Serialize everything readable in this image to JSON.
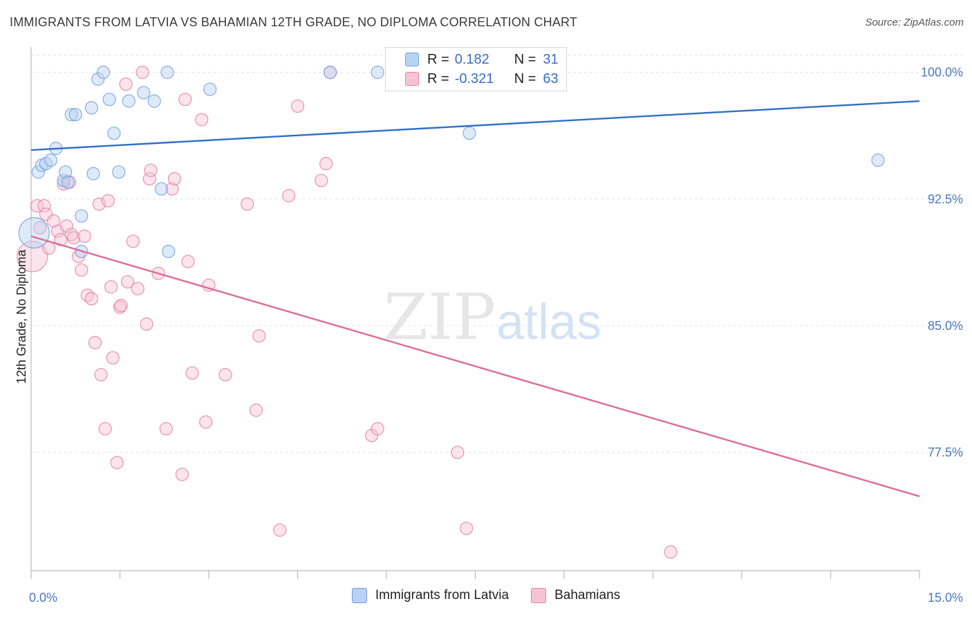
{
  "header": {
    "title": "IMMIGRANTS FROM LATVIA VS BAHAMIAN 12TH GRADE, NO DIPLOMA CORRELATION CHART",
    "source": "Source: ZipAtlas.com"
  },
  "watermark": {
    "zip": "ZIP",
    "atlas": "atlas"
  },
  "legend": {
    "rows": [
      {
        "r_label": "R =",
        "r_value": "0.182",
        "n_label": "N =",
        "n_value": "31"
      },
      {
        "r_label": "R =",
        "r_value": "-0.321",
        "n_label": "N =",
        "n_value": "63"
      }
    ]
  },
  "chart_data": {
    "type": "scatter",
    "title": "IMMIGRANTS FROM LATVIA VS BAHAMIAN 12TH GRADE, NO DIPLOMA CORRELATION CHART",
    "xlabel": "",
    "ylabel": "12th Grade, No Diploma",
    "xlim": [
      0,
      15
    ],
    "ylim": [
      70.5,
      101.5
    ],
    "x_tick_labels": [
      "0.0%",
      "15.0%"
    ],
    "y_ticks": [
      {
        "value": 100,
        "label": "100.0%"
      },
      {
        "value": 92.5,
        "label": "92.5%"
      },
      {
        "value": 85,
        "label": "85.0%"
      },
      {
        "value": 77.5,
        "label": "77.5%"
      }
    ],
    "grid": true,
    "legend_position": "top-center",
    "colors": {
      "latvia": "#6fa0e0",
      "latvia_fill": "#b9d1f2",
      "bahamas": "#e87fa2",
      "bahamas_fill": "#f6c3d4",
      "latvia_line": "#2e6fc7",
      "bahamas_line": "#df6a96",
      "tick_text": "#4a78c2"
    },
    "series": [
      {
        "name": "Immigrants from Latvia",
        "trend": {
          "x": [
            0,
            15
          ],
          "y": [
            95.4,
            98.3
          ]
        },
        "points": [
          {
            "x": 0.05,
            "y": 90.5,
            "large": true
          },
          {
            "x": 0.12,
            "y": 94.1
          },
          {
            "x": 0.18,
            "y": 94.5
          },
          {
            "x": 0.25,
            "y": 94.6
          },
          {
            "x": 0.33,
            "y": 94.8
          },
          {
            "x": 0.42,
            "y": 95.5
          },
          {
            "x": 0.55,
            "y": 93.6
          },
          {
            "x": 0.58,
            "y": 94.1
          },
          {
            "x": 0.62,
            "y": 93.5
          },
          {
            "x": 0.68,
            "y": 97.5
          },
          {
            "x": 0.75,
            "y": 97.5
          },
          {
            "x": 0.85,
            "y": 91.5
          },
          {
            "x": 0.85,
            "y": 89.4
          },
          {
            "x": 1.02,
            "y": 97.9
          },
          {
            "x": 1.05,
            "y": 94.0
          },
          {
            "x": 1.13,
            "y": 99.6
          },
          {
            "x": 1.22,
            "y": 100.0
          },
          {
            "x": 1.32,
            "y": 98.4
          },
          {
            "x": 1.4,
            "y": 96.4
          },
          {
            "x": 1.48,
            "y": 94.1
          },
          {
            "x": 1.65,
            "y": 98.3
          },
          {
            "x": 1.9,
            "y": 98.8
          },
          {
            "x": 2.08,
            "y": 98.3
          },
          {
            "x": 2.2,
            "y": 93.1
          },
          {
            "x": 2.3,
            "y": 100.0
          },
          {
            "x": 2.32,
            "y": 89.4
          },
          {
            "x": 3.02,
            "y": 99.0
          },
          {
            "x": 5.05,
            "y": 100.0
          },
          {
            "x": 5.85,
            "y": 100.0
          },
          {
            "x": 7.4,
            "y": 96.4
          },
          {
            "x": 14.3,
            "y": 94.8
          }
        ]
      },
      {
        "name": "Bahamians",
        "trend": {
          "x": [
            0,
            15
          ],
          "y": [
            90.3,
            74.9
          ]
        },
        "points": [
          {
            "x": 0.02,
            "y": 89.1,
            "large": true
          },
          {
            "x": 0.1,
            "y": 92.1
          },
          {
            "x": 0.15,
            "y": 90.8
          },
          {
            "x": 0.22,
            "y": 92.1
          },
          {
            "x": 0.25,
            "y": 91.6
          },
          {
            "x": 0.3,
            "y": 89.6
          },
          {
            "x": 0.38,
            "y": 91.2
          },
          {
            "x": 0.45,
            "y": 90.6
          },
          {
            "x": 0.5,
            "y": 90.1
          },
          {
            "x": 0.55,
            "y": 93.4
          },
          {
            "x": 0.6,
            "y": 90.9
          },
          {
            "x": 0.65,
            "y": 93.5
          },
          {
            "x": 0.68,
            "y": 90.4
          },
          {
            "x": 0.72,
            "y": 90.2
          },
          {
            "x": 0.8,
            "y": 89.1
          },
          {
            "x": 0.85,
            "y": 88.3
          },
          {
            "x": 0.9,
            "y": 90.3
          },
          {
            "x": 0.95,
            "y": 86.8
          },
          {
            "x": 1.02,
            "y": 86.6
          },
          {
            "x": 1.08,
            "y": 84.0
          },
          {
            "x": 1.15,
            "y": 92.2
          },
          {
            "x": 1.18,
            "y": 82.1
          },
          {
            "x": 1.25,
            "y": 78.9
          },
          {
            "x": 1.3,
            "y": 92.4
          },
          {
            "x": 1.35,
            "y": 87.3
          },
          {
            "x": 1.38,
            "y": 83.1
          },
          {
            "x": 1.45,
            "y": 76.9
          },
          {
            "x": 1.5,
            "y": 86.1
          },
          {
            "x": 1.52,
            "y": 86.2
          },
          {
            "x": 1.6,
            "y": 99.3
          },
          {
            "x": 1.63,
            "y": 87.6
          },
          {
            "x": 1.72,
            "y": 90.0
          },
          {
            "x": 1.8,
            "y": 87.2
          },
          {
            "x": 1.88,
            "y": 100.0
          },
          {
            "x": 1.95,
            "y": 85.1
          },
          {
            "x": 2.0,
            "y": 93.7
          },
          {
            "x": 2.02,
            "y": 94.2
          },
          {
            "x": 2.15,
            "y": 88.1
          },
          {
            "x": 2.28,
            "y": 78.9
          },
          {
            "x": 2.38,
            "y": 93.1
          },
          {
            "x": 2.42,
            "y": 93.7
          },
          {
            "x": 2.55,
            "y": 76.2
          },
          {
            "x": 2.6,
            "y": 98.4
          },
          {
            "x": 2.65,
            "y": 88.8
          },
          {
            "x": 2.72,
            "y": 82.2
          },
          {
            "x": 2.88,
            "y": 97.2
          },
          {
            "x": 2.95,
            "y": 79.3
          },
          {
            "x": 3.0,
            "y": 87.4
          },
          {
            "x": 3.28,
            "y": 82.1
          },
          {
            "x": 3.65,
            "y": 92.2
          },
          {
            "x": 3.8,
            "y": 80.0
          },
          {
            "x": 3.85,
            "y": 84.4
          },
          {
            "x": 4.2,
            "y": 72.9
          },
          {
            "x": 4.35,
            "y": 92.7
          },
          {
            "x": 4.5,
            "y": 98.0
          },
          {
            "x": 4.9,
            "y": 93.6
          },
          {
            "x": 4.98,
            "y": 94.6
          },
          {
            "x": 5.05,
            "y": 100.0
          },
          {
            "x": 5.75,
            "y": 78.5
          },
          {
            "x": 5.85,
            "y": 78.9
          },
          {
            "x": 7.2,
            "y": 77.5
          },
          {
            "x": 7.35,
            "y": 73.0
          },
          {
            "x": 10.8,
            "y": 71.6
          }
        ]
      }
    ]
  },
  "bottom_legend": [
    "Immigrants from Latvia",
    "Bahamians"
  ]
}
